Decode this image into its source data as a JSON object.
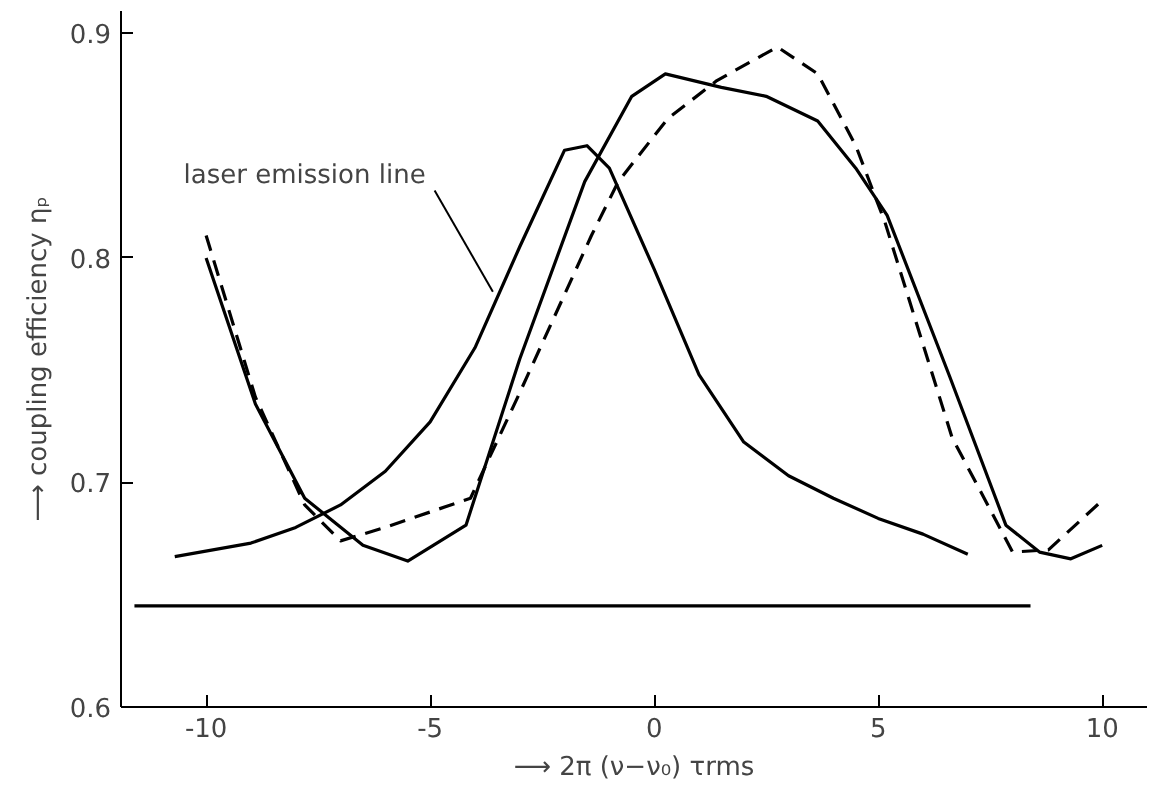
{
  "chart_data": {
    "type": "line",
    "xlabel": "⟶ 2π (ν−ν₀) τrms",
    "ylabel": "⟶ coupling efficiency ηₚ",
    "xlim": [
      -11.9,
      11
    ],
    "ylim": [
      0.6,
      0.91
    ],
    "xticks": [
      -10,
      -5,
      0,
      5,
      10
    ],
    "yticks": [
      0.6,
      0.7,
      0.8,
      0.9
    ],
    "grid": false,
    "marker": "none",
    "annotations": [
      {
        "text": "laser emission line",
        "x": -3.6,
        "y": 0.785
      }
    ],
    "series": [
      {
        "color": "#000000",
        "line_style": "solid",
        "x": [
          -10.7,
          -9,
          -8,
          -7,
          -6,
          -5,
          -4,
          -3,
          -2,
          -1.5,
          -1,
          0,
          1,
          2,
          3,
          4,
          5,
          6,
          7
        ],
        "values": [
          0.667,
          0.673,
          0.68,
          0.69,
          0.705,
          0.727,
          0.76,
          0.805,
          0.848,
          0.85,
          0.84,
          0.795,
          0.748,
          0.718,
          0.703,
          0.693,
          0.684,
          0.677,
          0.668
        ]
      },
      {
        "color": "#000000",
        "line_style": "solid",
        "x": [
          -10,
          -8.9,
          -7.8,
          -6.5,
          -5.5,
          -4.2,
          -3,
          -1.55,
          -0.5,
          0.25,
          1.5,
          2.5,
          3.65,
          4.5,
          5.2,
          6.6,
          7.85,
          8.6,
          9.3,
          10
        ],
        "values": [
          0.8,
          0.735,
          0.693,
          0.672,
          0.665,
          0.681,
          0.755,
          0.834,
          0.872,
          0.882,
          0.876,
          0.872,
          0.861,
          0.84,
          0.819,
          0.747,
          0.681,
          0.669,
          0.666,
          0.672
        ]
      },
      {
        "color": "#000000",
        "line_style": "dashed",
        "x": [
          -10,
          -8.9,
          -7.8,
          -7,
          -6,
          -4.98,
          -4.1,
          -3,
          -1.4,
          -0.8,
          0.3,
          1.4,
          2.75,
          3.65,
          4.5,
          5.15,
          6.65,
          8,
          8.8,
          10
        ],
        "values": [
          0.81,
          0.738,
          0.69,
          0.674,
          0.68,
          0.687,
          0.693,
          0.74,
          0.81,
          0.834,
          0.862,
          0.879,
          0.894,
          0.882,
          0.85,
          0.816,
          0.72,
          0.669,
          0.67,
          0.692
        ]
      },
      {
        "color": "#000000",
        "line_style": "solid",
        "x": [
          -11.6,
          8.4
        ],
        "values": [
          0.645,
          0.645
        ]
      }
    ]
  }
}
